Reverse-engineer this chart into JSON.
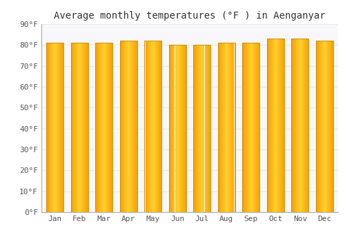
{
  "title": "Average monthly temperatures (°F ) in Aenganyar",
  "months": [
    "Jan",
    "Feb",
    "Mar",
    "Apr",
    "May",
    "Jun",
    "Jul",
    "Aug",
    "Sep",
    "Oct",
    "Nov",
    "Dec"
  ],
  "values": [
    81,
    81,
    81,
    82,
    82,
    80,
    80,
    81,
    81,
    83,
    83,
    82
  ],
  "ylim": [
    0,
    90
  ],
  "yticks": [
    0,
    10,
    20,
    30,
    40,
    50,
    60,
    70,
    80,
    90
  ],
  "ytick_labels": [
    "0°F",
    "10°F",
    "20°F",
    "30°F",
    "40°F",
    "50°F",
    "60°F",
    "70°F",
    "80°F",
    "90°F"
  ],
  "bar_color_center": "#FFD050",
  "bar_color_edge": "#F5A000",
  "bar_border_color": "#C8880A",
  "background_color": "#ffffff",
  "plot_bg_color": "#f8f8fc",
  "grid_color": "#e8e8ee",
  "title_fontsize": 10,
  "tick_fontsize": 8,
  "font_family": "monospace"
}
